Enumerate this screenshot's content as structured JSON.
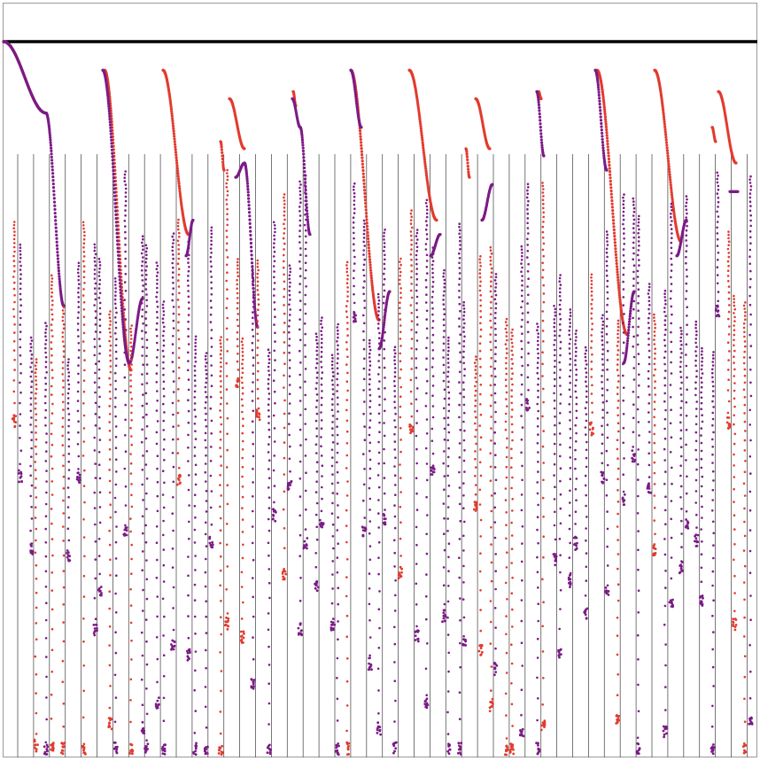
{
  "colors": {
    "background": "#ffffff",
    "frame": "#999999",
    "baseline": "#000000",
    "lanes": "#555555",
    "phase_a": "#7b1b86",
    "phase_b": "#e23b2e"
  },
  "chart_data": {
    "type": "scatter",
    "title": "",
    "xlabel": "",
    "ylabel": "",
    "legend": "none",
    "grid": false,
    "lane_count": 47,
    "lane_band": [
      0.186,
      1.0
    ],
    "series": [
      {
        "color_key": "phase_b",
        "arcs": [
          {
            "x": [
              0,
              48
            ],
            "y": [
              0.0,
              0.1
            ]
          },
          {
            "x": [
              114,
              144
            ],
            "y": [
              0.04,
              0.46
            ]
          },
          {
            "x": [
              180,
              209
            ],
            "y": [
              0.04,
              0.27
            ]
          },
          {
            "x": [
              245,
              249
            ],
            "y": [
              0.14,
              0.18
            ]
          },
          {
            "x": [
              255,
              272
            ],
            "y": [
              0.08,
              0.15
            ]
          },
          {
            "x": [
              327,
              330
            ],
            "y": [
              0.07,
              0.09
            ]
          },
          {
            "x": [
              392,
              424
            ],
            "y": [
              0.04,
              0.39
            ]
          },
          {
            "x": [
              458,
              489
            ],
            "y": [
              0.04,
              0.25
            ]
          },
          {
            "x": [
              522,
              526
            ],
            "y": [
              0.15,
              0.19
            ]
          },
          {
            "x": [
              533,
              549
            ],
            "y": [
              0.08,
              0.15
            ]
          },
          {
            "x": [
              604,
              607
            ],
            "y": [
              0.07,
              0.08
            ]
          },
          {
            "x": [
              670,
              704
            ],
            "y": [
              0.04,
              0.41
            ]
          },
          {
            "x": [
              735,
              765
            ],
            "y": [
              0.04,
              0.28
            ]
          },
          {
            "x": [
              800,
              804
            ],
            "y": [
              0.12,
              0.14
            ]
          },
          {
            "x": [
              807,
              827
            ],
            "y": [
              0.07,
              0.17
            ]
          }
        ]
      },
      {
        "color_key": "phase_a",
        "arcs": [
          {
            "x": [
              0,
              48
            ],
            "y": [
              0.0,
              0.1
            ]
          },
          {
            "x": [
              48,
              68
            ],
            "y": [
              0.1,
              0.37
            ]
          },
          {
            "x": [
              112,
              142
            ],
            "y": [
              0.04,
              0.45
            ]
          },
          {
            "x": [
              142,
              157
            ],
            "y": [
              0.45,
              0.36
            ]
          },
          {
            "x": [
              206,
              214
            ],
            "y": [
              0.3,
              0.25
            ]
          },
          {
            "x": [
              262,
              272
            ],
            "y": [
              0.19,
              0.17
            ]
          },
          {
            "x": [
              272,
              287
            ],
            "y": [
              0.17,
              0.4
            ]
          },
          {
            "x": [
              326,
              335
            ],
            "y": [
              0.08,
              0.12
            ]
          },
          {
            "x": [
              335,
              346
            ],
            "y": [
              0.12,
              0.27
            ]
          },
          {
            "x": [
              392,
              404
            ],
            "y": [
              0.04,
              0.12
            ]
          },
          {
            "x": [
              424,
              436
            ],
            "y": [
              0.43,
              0.35
            ]
          },
          {
            "x": [
              482,
              493
            ],
            "y": [
              0.3,
              0.27
            ]
          },
          {
            "x": [
              540,
              552
            ],
            "y": [
              0.25,
              0.2
            ]
          },
          {
            "x": [
              602,
              610
            ],
            "y": [
              0.07,
              0.16
            ]
          },
          {
            "x": [
              668,
              681
            ],
            "y": [
              0.04,
              0.18
            ]
          },
          {
            "x": [
              700,
              712
            ],
            "y": [
              0.45,
              0.35
            ]
          },
          {
            "x": [
              760,
              771
            ],
            "y": [
              0.3,
              0.25
            ]
          },
          {
            "x": [
              820,
              829
            ],
            "y": [
              0.21,
              0.21
            ]
          }
        ]
      }
    ]
  }
}
